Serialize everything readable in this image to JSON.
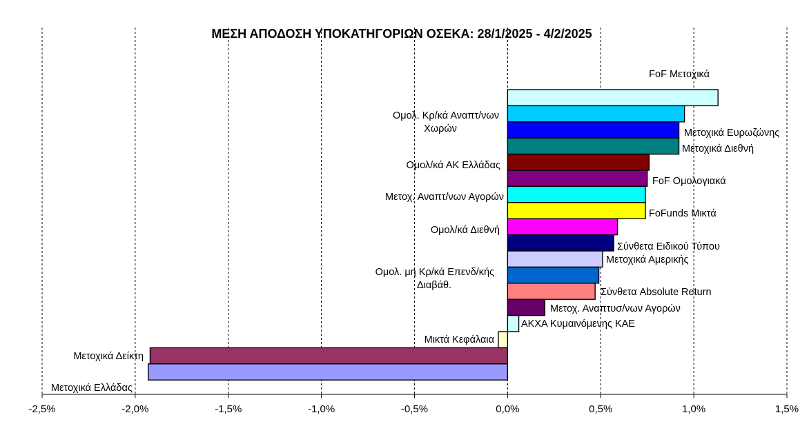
{
  "chart_data": {
    "type": "bar",
    "orientation": "horizontal",
    "title": "ΜΕΣΗ ΑΠΟΔΟΣΗ ΥΠΟΚΑΤΗΓΟΡΙΩΝ ΟΣΕΚΑ: 28/1/2025 - 4/2/2025",
    "xlabel": "",
    "ylabel": "",
    "xlim": [
      -2.5,
      1.5
    ],
    "xticks": [
      -2.5,
      -2.0,
      -1.5,
      -1.0,
      -0.5,
      0.0,
      0.5,
      1.0,
      1.5
    ],
    "xtick_labels": [
      "-2,5%",
      "-2,0%",
      "-1,5%",
      "-1,0%",
      "-0,5%",
      "0,0%",
      "0,5%",
      "1,0%",
      "1,5%"
    ],
    "grid": "vertical-dashed",
    "legend": "none",
    "categories": [
      "FoF Μετοχικά",
      "Ομολ. Κρ/κά Αναπτ/νων Χωρών",
      "Μετοχικά Ευρωζώνης",
      "Μετοχικά Διεθνή",
      "Ομολ/κά ΑΚ Ελλάδας",
      "FoF Ομολογιακά",
      "Μετοχ. Αναπτ/νων Αγορών",
      "FoFunds Μικτά",
      "Ομολ/κά Διεθνή",
      "Σύνθετα Ειδικού Τύπου",
      "Μετοχικά Αμερικής",
      "Ομολ. μη Κρ/κά Επενδ/κής Διαβάθ.",
      "Σύνθετα Absolute Return",
      "Μετοχ. Αναπτυσ/νων Αγορών",
      "ΑΚΧΑ Κυμαινόμενης ΚΑΕ",
      "Μικτά Κεφάλαια",
      "Μετοχικά Δείκτη",
      "Μετοχικά Ελλάδας"
    ],
    "values": [
      1.13,
      0.95,
      0.92,
      0.92,
      0.76,
      0.75,
      0.74,
      0.74,
      0.59,
      0.57,
      0.51,
      0.49,
      0.47,
      0.2,
      0.06,
      -0.05,
      -1.92,
      -1.93
    ],
    "colors": [
      "#ccffff",
      "#00ccff",
      "#0000ff",
      "#008080",
      "#800000",
      "#800080",
      "#00ffff",
      "#ffff00",
      "#ff00ff",
      "#000080",
      "#ccccff",
      "#0066cc",
      "#ff8080",
      "#660066",
      "#ccffff",
      "#ffffcc",
      "#993366",
      "#9999ff"
    ]
  }
}
